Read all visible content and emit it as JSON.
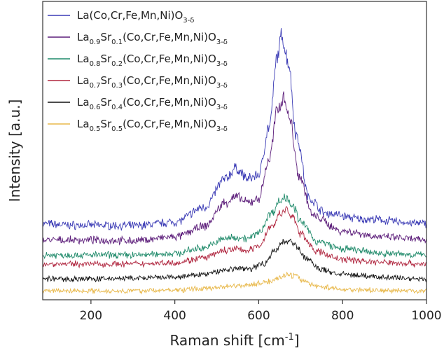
{
  "chart_data": {
    "type": "line",
    "title": "",
    "xlabel": "Raman shift",
    "xlabel_unit_base": "cm",
    "xlabel_unit_exp": "-1",
    "ylabel": "Intensity [a.u.]",
    "xlim": [
      85,
      1000
    ],
    "xticks": [
      200,
      400,
      600,
      800,
      1000
    ],
    "y_ticks_shown": false,
    "grid": false,
    "legend_position": "top-left",
    "series": [
      {
        "name": "La(Co,Cr,Fe,Mn,Ni)O3-δ",
        "legend_parts": [
          [
            "La(Co,Cr,Fe,Mn,Ni)O",
            "n"
          ],
          [
            "3-δ",
            "sub"
          ]
        ],
        "color": "#3b3bb5",
        "points": [
          [
            85,
            0.255
          ],
          [
            150,
            0.25
          ],
          [
            200,
            0.25
          ],
          [
            300,
            0.248
          ],
          [
            400,
            0.26
          ],
          [
            470,
            0.31
          ],
          [
            520,
            0.405
          ],
          [
            545,
            0.44
          ],
          [
            575,
            0.405
          ],
          [
            600,
            0.42
          ],
          [
            625,
            0.58
          ],
          [
            645,
            0.82
          ],
          [
            655,
            0.885
          ],
          [
            670,
            0.8
          ],
          [
            690,
            0.55
          ],
          [
            720,
            0.34
          ],
          [
            760,
            0.29
          ],
          [
            850,
            0.27
          ],
          [
            1000,
            0.255
          ]
        ]
      },
      {
        "name": "La0.9Sr0.1(Co,Cr,Fe,Mn,Ni)O3-δ",
        "legend_parts": [
          [
            "La",
            "n"
          ],
          [
            "0.9",
            "sub"
          ],
          [
            "Sr",
            "n"
          ],
          [
            "0.1",
            "sub"
          ],
          [
            "(Co,Cr,Fe,Mn,Ni)O",
            "n"
          ],
          [
            "3-δ",
            "sub"
          ]
        ],
        "color": "#5c1d7a",
        "points": [
          [
            85,
            0.2
          ],
          [
            200,
            0.2
          ],
          [
            300,
            0.198
          ],
          [
            400,
            0.21
          ],
          [
            470,
            0.245
          ],
          [
            520,
            0.325
          ],
          [
            545,
            0.345
          ],
          [
            575,
            0.325
          ],
          [
            600,
            0.34
          ],
          [
            625,
            0.47
          ],
          [
            645,
            0.64
          ],
          [
            660,
            0.68
          ],
          [
            675,
            0.6
          ],
          [
            695,
            0.42
          ],
          [
            730,
            0.28
          ],
          [
            800,
            0.23
          ],
          [
            900,
            0.21
          ],
          [
            1000,
            0.2
          ]
        ]
      },
      {
        "name": "La0.8Sr0.2(Co,Cr,Fe,Mn,Ni)O3-δ",
        "legend_parts": [
          [
            "La",
            "n"
          ],
          [
            "0.8",
            "sub"
          ],
          [
            "Sr",
            "n"
          ],
          [
            "0.2",
            "sub"
          ],
          [
            "(Co,Cr,Fe,Mn,Ni)O",
            "n"
          ],
          [
            "3-δ",
            "sub"
          ]
        ],
        "color": "#1f8a6a",
        "points": [
          [
            85,
            0.15
          ],
          [
            200,
            0.15
          ],
          [
            300,
            0.15
          ],
          [
            400,
            0.155
          ],
          [
            470,
            0.175
          ],
          [
            520,
            0.205
          ],
          [
            545,
            0.21
          ],
          [
            575,
            0.205
          ],
          [
            600,
            0.225
          ],
          [
            630,
            0.29
          ],
          [
            650,
            0.33
          ],
          [
            665,
            0.345
          ],
          [
            680,
            0.32
          ],
          [
            700,
            0.26
          ],
          [
            740,
            0.195
          ],
          [
            800,
            0.17
          ],
          [
            900,
            0.155
          ],
          [
            1000,
            0.15
          ]
        ]
      },
      {
        "name": "La0.7Sr0.3(Co,Cr,Fe,Mn,Ni)O3-δ",
        "legend_parts": [
          [
            "La",
            "n"
          ],
          [
            "0.7",
            "sub"
          ],
          [
            "Sr",
            "n"
          ],
          [
            "0.3",
            "sub"
          ],
          [
            "(Co,Cr,Fe,Mn,Ni)O",
            "n"
          ],
          [
            "3-δ",
            "sub"
          ]
        ],
        "color": "#b0263f",
        "points": [
          [
            85,
            0.12
          ],
          [
            200,
            0.12
          ],
          [
            300,
            0.12
          ],
          [
            400,
            0.125
          ],
          [
            470,
            0.14
          ],
          [
            520,
            0.165
          ],
          [
            545,
            0.17
          ],
          [
            575,
            0.165
          ],
          [
            600,
            0.18
          ],
          [
            630,
            0.245
          ],
          [
            650,
            0.285
          ],
          [
            665,
            0.3
          ],
          [
            680,
            0.28
          ],
          [
            700,
            0.22
          ],
          [
            740,
            0.16
          ],
          [
            800,
            0.135
          ],
          [
            900,
            0.125
          ],
          [
            1000,
            0.12
          ]
        ]
      },
      {
        "name": "La0.6Sr0.4(Co,Cr,Fe,Mn,Ni)O3-δ",
        "legend_parts": [
          [
            "La",
            "n"
          ],
          [
            "0.6",
            "sub"
          ],
          [
            "Sr",
            "n"
          ],
          [
            "0.4",
            "sub"
          ],
          [
            "(Co,Cr,Fe,Mn,Ni)O",
            "n"
          ],
          [
            "3-δ",
            "sub"
          ]
        ],
        "color": "#111111",
        "points": [
          [
            85,
            0.07
          ],
          [
            200,
            0.07
          ],
          [
            300,
            0.072
          ],
          [
            400,
            0.075
          ],
          [
            470,
            0.085
          ],
          [
            520,
            0.1
          ],
          [
            545,
            0.105
          ],
          [
            580,
            0.105
          ],
          [
            610,
            0.12
          ],
          [
            640,
            0.165
          ],
          [
            660,
            0.195
          ],
          [
            675,
            0.2
          ],
          [
            690,
            0.18
          ],
          [
            710,
            0.14
          ],
          [
            750,
            0.1
          ],
          [
            800,
            0.085
          ],
          [
            900,
            0.075
          ],
          [
            1000,
            0.07
          ]
        ]
      },
      {
        "name": "La0.5Sr0.5(Co,Cr,Fe,Mn,Ni)O3-δ",
        "legend_parts": [
          [
            "La",
            "n"
          ],
          [
            "0.5",
            "sub"
          ],
          [
            "Sr",
            "n"
          ],
          [
            "0.5",
            "sub"
          ],
          [
            "(Co,Cr,Fe,Mn,Ni)O",
            "n"
          ],
          [
            "3-δ",
            "sub"
          ]
        ],
        "color": "#e8b84a",
        "points": [
          [
            85,
            0.03
          ],
          [
            200,
            0.03
          ],
          [
            300,
            0.03
          ],
          [
            400,
            0.032
          ],
          [
            470,
            0.038
          ],
          [
            520,
            0.045
          ],
          [
            545,
            0.048
          ],
          [
            580,
            0.05
          ],
          [
            620,
            0.06
          ],
          [
            650,
            0.075
          ],
          [
            670,
            0.085
          ],
          [
            685,
            0.08
          ],
          [
            705,
            0.065
          ],
          [
            740,
            0.045
          ],
          [
            800,
            0.035
          ],
          [
            900,
            0.031
          ],
          [
            1000,
            0.03
          ]
        ]
      }
    ]
  }
}
